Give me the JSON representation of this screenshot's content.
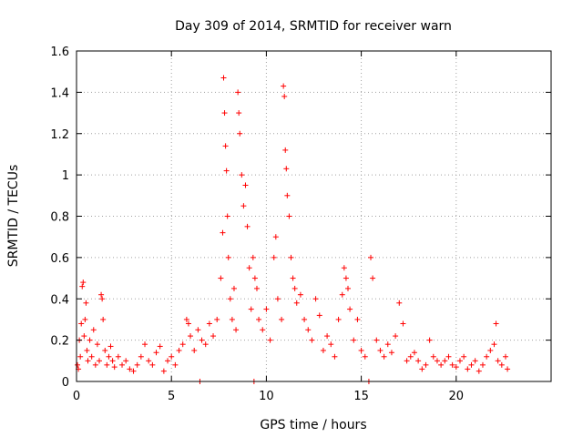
{
  "chart_data": {
    "type": "scatter",
    "title": "Day 309 of 2014, SRMTID for receiver warn",
    "xlabel": "GPS time / hours",
    "ylabel": "SRMTID / TECUs",
    "xlim": [
      0,
      25
    ],
    "ylim": [
      0,
      1.6
    ],
    "xticks": [
      0,
      5,
      10,
      15,
      20
    ],
    "yticks": [
      0,
      0.2,
      0.4,
      0.6,
      0.8,
      1,
      1.2,
      1.4,
      1.6
    ],
    "ytick_labels": [
      "0",
      "0.2",
      "0.4",
      "0.6",
      "0.8",
      "1",
      "1.2",
      "1.4",
      "1.6"
    ],
    "grid": true,
    "marker": "plus",
    "color": "#ff0000",
    "series": [
      {
        "name": "SRMTID",
        "points": [
          [
            0.05,
            0.08
          ],
          [
            0.1,
            0.06
          ],
          [
            0.15,
            0.2
          ],
          [
            0.2,
            0.12
          ],
          [
            0.25,
            0.28
          ],
          [
            0.3,
            0.46
          ],
          [
            0.35,
            0.48
          ],
          [
            0.4,
            0.22
          ],
          [
            0.45,
            0.3
          ],
          [
            0.5,
            0.38
          ],
          [
            0.55,
            0.15
          ],
          [
            0.6,
            0.1
          ],
          [
            0.7,
            0.2
          ],
          [
            0.8,
            0.12
          ],
          [
            0.9,
            0.25
          ],
          [
            1.0,
            0.08
          ],
          [
            1.1,
            0.18
          ],
          [
            1.2,
            0.1
          ],
          [
            1.3,
            0.42
          ],
          [
            1.35,
            0.4
          ],
          [
            1.4,
            0.3
          ],
          [
            1.5,
            0.15
          ],
          [
            1.6,
            0.08
          ],
          [
            1.7,
            0.12
          ],
          [
            1.8,
            0.17
          ],
          [
            1.9,
            0.1
          ],
          [
            2.0,
            0.07
          ],
          [
            2.2,
            0.12
          ],
          [
            2.4,
            0.08
          ],
          [
            2.6,
            0.1
          ],
          [
            2.8,
            0.06
          ],
          [
            3.0,
            0.05
          ],
          [
            3.2,
            0.08
          ],
          [
            3.4,
            0.12
          ],
          [
            3.6,
            0.18
          ],
          [
            3.8,
            0.1
          ],
          [
            4.0,
            0.08
          ],
          [
            4.2,
            0.14
          ],
          [
            4.4,
            0.17
          ],
          [
            4.6,
            0.05
          ],
          [
            4.8,
            0.1
          ],
          [
            5.0,
            0.12
          ],
          [
            5.2,
            0.08
          ],
          [
            5.4,
            0.15
          ],
          [
            5.6,
            0.18
          ],
          [
            5.8,
            0.3
          ],
          [
            5.9,
            0.28
          ],
          [
            6.0,
            0.22
          ],
          [
            6.2,
            0.15
          ],
          [
            6.4,
            0.25
          ],
          [
            6.6,
            0.2
          ],
          [
            6.8,
            0.18
          ],
          [
            7.0,
            0.28
          ],
          [
            7.2,
            0.22
          ],
          [
            7.4,
            0.3
          ],
          [
            7.6,
            0.5
          ],
          [
            7.7,
            0.72
          ],
          [
            7.75,
            1.47
          ],
          [
            7.8,
            1.3
          ],
          [
            7.85,
            1.14
          ],
          [
            7.9,
            1.02
          ],
          [
            7.95,
            0.8
          ],
          [
            8.0,
            0.6
          ],
          [
            8.1,
            0.4
          ],
          [
            8.2,
            0.3
          ],
          [
            8.3,
            0.45
          ],
          [
            8.4,
            0.25
          ],
          [
            8.5,
            1.4
          ],
          [
            8.55,
            1.3
          ],
          [
            8.6,
            1.2
          ],
          [
            8.7,
            1.0
          ],
          [
            8.8,
            0.85
          ],
          [
            8.9,
            0.95
          ],
          [
            9.0,
            0.75
          ],
          [
            9.1,
            0.55
          ],
          [
            9.2,
            0.35
          ],
          [
            9.3,
            0.6
          ],
          [
            9.4,
            0.5
          ],
          [
            9.5,
            0.45
          ],
          [
            9.6,
            0.3
          ],
          [
            9.8,
            0.25
          ],
          [
            10.0,
            0.35
          ],
          [
            10.2,
            0.2
          ],
          [
            10.4,
            0.6
          ],
          [
            10.5,
            0.7
          ],
          [
            10.6,
            0.4
          ],
          [
            10.8,
            0.3
          ],
          [
            10.9,
            1.43
          ],
          [
            10.95,
            1.38
          ],
          [
            11.0,
            1.12
          ],
          [
            11.05,
            1.03
          ],
          [
            11.1,
            0.9
          ],
          [
            11.2,
            0.8
          ],
          [
            11.3,
            0.6
          ],
          [
            11.4,
            0.5
          ],
          [
            11.5,
            0.45
          ],
          [
            11.6,
            0.38
          ],
          [
            11.8,
            0.42
          ],
          [
            12.0,
            0.3
          ],
          [
            12.2,
            0.25
          ],
          [
            12.4,
            0.2
          ],
          [
            12.6,
            0.4
          ],
          [
            12.8,
            0.32
          ],
          [
            13.0,
            0.15
          ],
          [
            13.2,
            0.22
          ],
          [
            13.4,
            0.18
          ],
          [
            13.6,
            0.12
          ],
          [
            13.8,
            0.3
          ],
          [
            14.0,
            0.42
          ],
          [
            14.1,
            0.55
          ],
          [
            14.2,
            0.5
          ],
          [
            14.3,
            0.45
          ],
          [
            14.4,
            0.35
          ],
          [
            14.6,
            0.2
          ],
          [
            14.8,
            0.3
          ],
          [
            15.0,
            0.15
          ],
          [
            15.2,
            0.12
          ],
          [
            15.5,
            0.6
          ],
          [
            15.6,
            0.5
          ],
          [
            15.8,
            0.2
          ],
          [
            16.0,
            0.15
          ],
          [
            16.2,
            0.12
          ],
          [
            16.4,
            0.18
          ],
          [
            16.6,
            0.14
          ],
          [
            16.8,
            0.22
          ],
          [
            17.0,
            0.38
          ],
          [
            17.2,
            0.28
          ],
          [
            17.4,
            0.1
          ],
          [
            17.6,
            0.12
          ],
          [
            17.8,
            0.14
          ],
          [
            18.0,
            0.1
          ],
          [
            18.2,
            0.06
          ],
          [
            18.4,
            0.08
          ],
          [
            18.6,
            0.2
          ],
          [
            18.8,
            0.12
          ],
          [
            19.0,
            0.1
          ],
          [
            19.2,
            0.08
          ],
          [
            19.4,
            0.1
          ],
          [
            19.6,
            0.12
          ],
          [
            19.8,
            0.08
          ],
          [
            20.0,
            0.07
          ],
          [
            20.2,
            0.1
          ],
          [
            20.4,
            0.12
          ],
          [
            20.6,
            0.06
          ],
          [
            20.8,
            0.08
          ],
          [
            21.0,
            0.1
          ],
          [
            21.2,
            0.05
          ],
          [
            21.4,
            0.08
          ],
          [
            21.6,
            0.12
          ],
          [
            21.8,
            0.15
          ],
          [
            22.0,
            0.18
          ],
          [
            22.1,
            0.28
          ],
          [
            22.2,
            0.1
          ],
          [
            22.4,
            0.08
          ],
          [
            22.6,
            0.12
          ],
          [
            22.7,
            0.06
          ],
          [
            6.5,
            0.0
          ],
          [
            9.35,
            0.0
          ],
          [
            15.4,
            0.0
          ]
        ]
      }
    ]
  }
}
